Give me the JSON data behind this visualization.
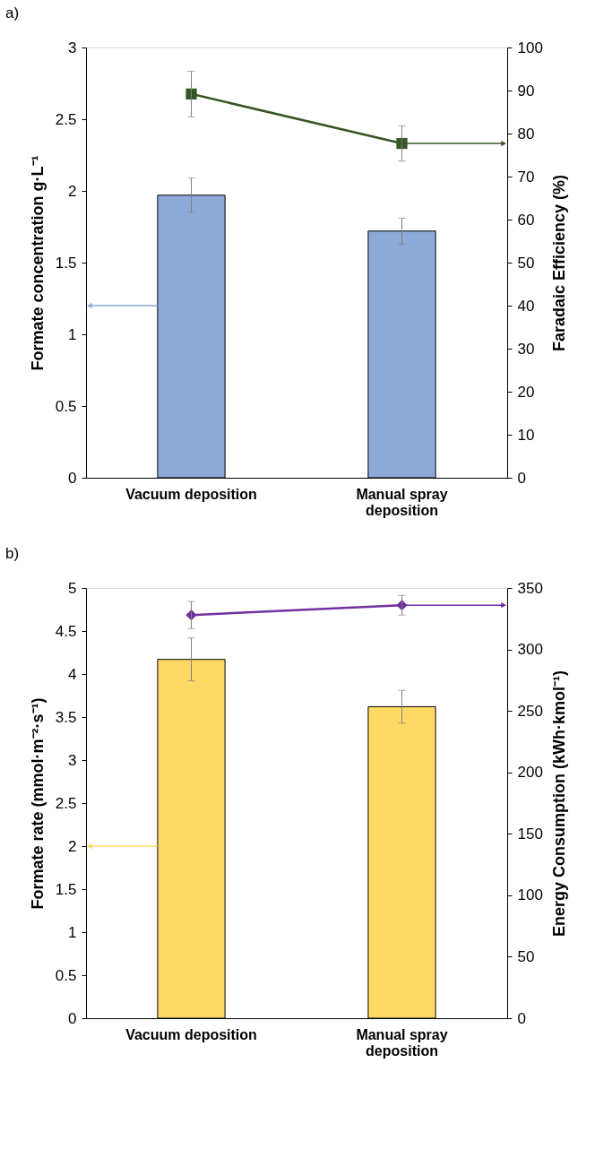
{
  "chart_data": [
    {
      "type": "bar",
      "title": "a)",
      "categories": [
        "Vacuum deposition",
        "Manual spray deposition"
      ],
      "ylabel": "Formate concentration g·L⁻¹",
      "y2label": "Faradaic Efficiency (%)",
      "ylim": [
        0,
        3
      ],
      "yticks": [
        0,
        0.5,
        1,
        1.5,
        2,
        2.5,
        3
      ],
      "y2lim": [
        0,
        100
      ],
      "y2ticks": [
        0,
        10,
        20,
        30,
        40,
        50,
        60,
        70,
        80,
        90,
        100
      ],
      "grid": false,
      "series": [
        {
          "color": "#8eaadb",
          "values": [
            1.97,
            1.72
          ],
          "errors": [
            0.12,
            0.09
          ]
        },
        {
          "type": "line",
          "axis": "y2",
          "color": "#375623",
          "marker": "square",
          "values": [
            89.2,
            77.7
          ],
          "errors": [
            5.3,
            4.1
          ]
        }
      ]
    },
    {
      "type": "bar",
      "title": "b)",
      "categories": [
        "Vacuum deposition",
        "Manual spray deposition"
      ],
      "ylabel": "Formate rate (mmol·m⁻²·s⁻¹)",
      "y2label": "Energy Consumption (kWh·kmol⁻¹)",
      "ylim": [
        0,
        5
      ],
      "yticks": [
        0,
        0.5,
        1,
        1.5,
        2,
        2.5,
        3,
        3.5,
        4,
        4.5,
        5
      ],
      "y2lim": [
        0,
        350
      ],
      "y2ticks": [
        0,
        50,
        100,
        150,
        200,
        250,
        300,
        350
      ],
      "grid": false,
      "series": [
        {
          "color": "#ffd966",
          "values": [
            4.17,
            3.62
          ],
          "errors": [
            0.25,
            0.19
          ]
        },
        {
          "type": "line",
          "axis": "y2",
          "color": "#7030a0",
          "marker": "diamond",
          "values": [
            328,
            336
          ],
          "errors": [
            11,
            8
          ]
        }
      ]
    }
  ]
}
